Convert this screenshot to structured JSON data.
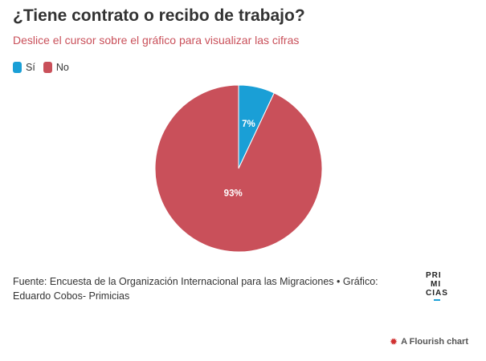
{
  "header": {
    "title": "¿Tiene contrato o recibo de trabajo?",
    "subtitle": "Deslice el cursor sobre el gráfico para visualizar las cifras"
  },
  "legend": [
    {
      "label": "Sí",
      "color": "#1a9fd6"
    },
    {
      "label": "No",
      "color": "#c9505a"
    }
  ],
  "chart_data": {
    "type": "pie",
    "title": "¿Tiene contrato o recibo de trabajo?",
    "categories": [
      "Sí",
      "No"
    ],
    "values": [
      7,
      93
    ],
    "labels": [
      "7%",
      "93%"
    ],
    "colors": [
      "#1a9fd6",
      "#c9505a"
    ],
    "legend": "top-left"
  },
  "footer": {
    "source": "Fuente: Encuesta de la Organización Internacional para las Migraciones • Gráfico: Eduardo Cobos- Primicias"
  },
  "logo": {
    "text": "PRIMICIAS",
    "lines": [
      "PRI",
      "MI",
      "CIAS"
    ]
  },
  "credit": {
    "icon": "flourish-icon",
    "text": "A Flourish chart"
  }
}
